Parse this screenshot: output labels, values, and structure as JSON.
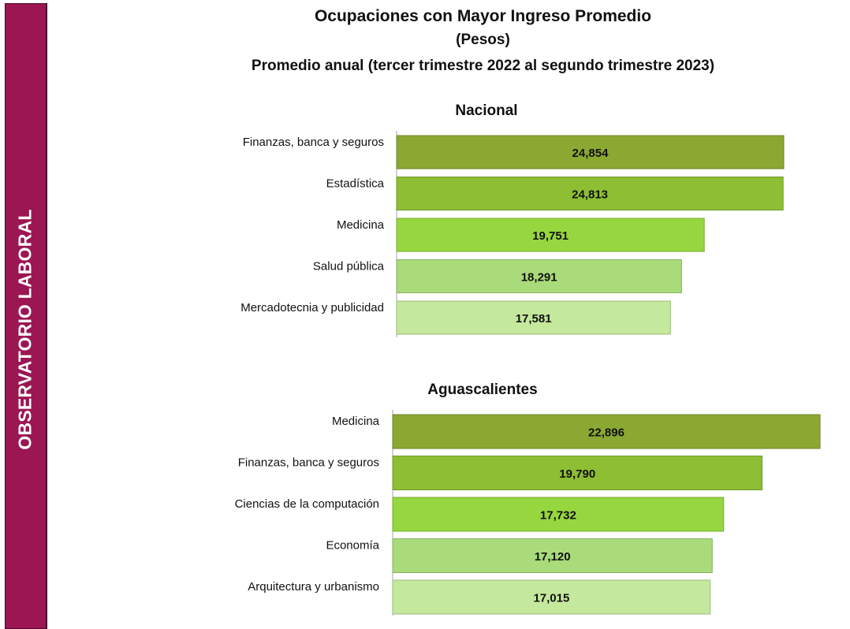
{
  "sidebar": {
    "label": "OBSERVATORIO LABORAL",
    "color": "#9b1653"
  },
  "header": {
    "title": "Ocupaciones con Mayor Ingreso Promedio",
    "subtitle": "(Pesos)",
    "period": "Promedio anual (tercer trimestre 2022 al segundo trimestre 2023)"
  },
  "bar_colors": [
    "#8aa832",
    "#8dbe33",
    "#96d63f",
    "#a9db7a",
    "#c4e89c"
  ],
  "chart_data": [
    {
      "type": "bar",
      "orientation": "horizontal",
      "title": "Nacional",
      "categories": [
        "Finanzas, banca y seguros",
        "Estadística",
        "Medicina",
        "Salud pública",
        "Mercadotecnia y publicidad"
      ],
      "values": [
        24854,
        24813,
        19751,
        18291,
        17581
      ],
      "value_labels": [
        "24,854",
        "24,813",
        "19,751",
        "18,291",
        "17,581"
      ],
      "xlabel": "",
      "ylabel": "",
      "grid": false,
      "legend": "none"
    },
    {
      "type": "bar",
      "orientation": "horizontal",
      "title": "Aguascalientes",
      "categories": [
        "Medicina",
        "Finanzas, banca y seguros",
        "Ciencias de la computación",
        "Economía",
        "Arquitectura y urbanismo"
      ],
      "values": [
        22896,
        19790,
        17732,
        17120,
        17015
      ],
      "value_labels": [
        "22,896",
        "19,790",
        "17,732",
        "17,120",
        "17,015"
      ],
      "xlabel": "",
      "ylabel": "",
      "grid": false,
      "legend": "none"
    }
  ]
}
